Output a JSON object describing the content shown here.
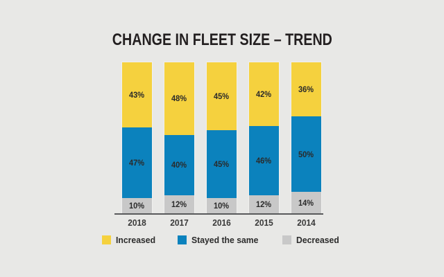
{
  "page": {
    "background": "#e8e8e6"
  },
  "chart_data": {
    "type": "bar",
    "stacked": true,
    "title": "CHANGE IN FLEET SIZE – TREND",
    "categories": [
      "2018",
      "2017",
      "2016",
      "2015",
      "2014"
    ],
    "series": [
      {
        "name": "Increased",
        "color": "#f5d13e",
        "values": [
          43,
          48,
          45,
          42,
          36
        ]
      },
      {
        "name": "Stayed the same",
        "color": "#0b82bd",
        "values": [
          47,
          40,
          45,
          46,
          50
        ]
      },
      {
        "name": "Decreased",
        "color": "#c8c8c8",
        "values": [
          10,
          12,
          10,
          12,
          14
        ]
      }
    ],
    "value_suffix": "%",
    "ylim": [
      0,
      100
    ],
    "grid": false,
    "legend_position": "bottom",
    "axis_color": "#58595b",
    "label_color": "#2a2a2a"
  }
}
